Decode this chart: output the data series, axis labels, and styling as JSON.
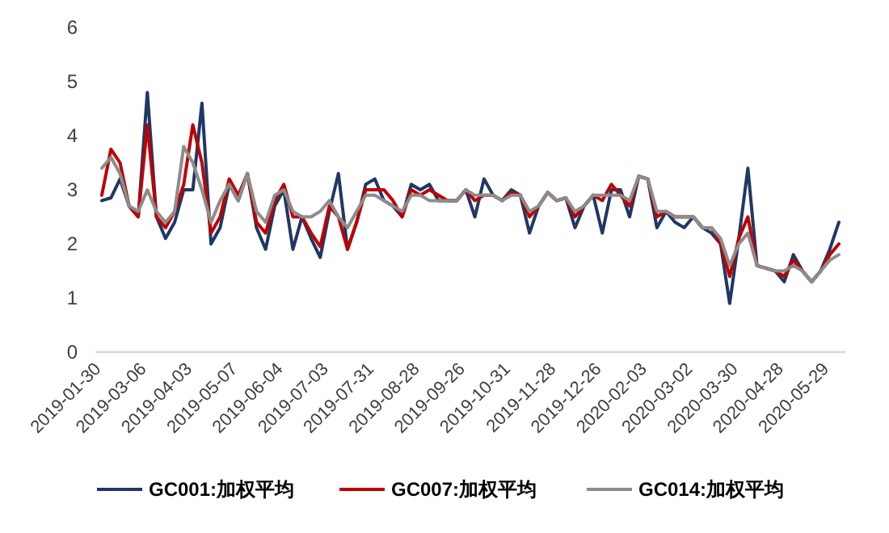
{
  "chart_data": {
    "type": "line",
    "categories": [
      "2019-01-30",
      null,
      null,
      null,
      null,
      "2019-03-06",
      null,
      null,
      null,
      null,
      "2019-04-03",
      null,
      null,
      null,
      null,
      "2019-05-07",
      null,
      null,
      null,
      null,
      "2019-06-04",
      null,
      null,
      null,
      null,
      "2019-07-03",
      null,
      null,
      null,
      null,
      "2019-07-31",
      null,
      null,
      null,
      null,
      "2019-08-28",
      null,
      null,
      null,
      null,
      "2019-09-26",
      null,
      null,
      null,
      null,
      "2019-10-31",
      null,
      null,
      null,
      null,
      "2019-11-28",
      null,
      null,
      null,
      null,
      "2019-12-26",
      null,
      null,
      null,
      null,
      "2020-02-03",
      null,
      null,
      null,
      null,
      "2020-03-02",
      null,
      null,
      null,
      null,
      "2020-03-30",
      null,
      null,
      null,
      null,
      "2020-04-28",
      null,
      null,
      null,
      null,
      "2020-05-29",
      null
    ],
    "series": [
      {
        "name": "GC001:加权平均",
        "color": "#1f3864",
        "values": [
          2.8,
          2.85,
          3.2,
          2.7,
          2.5,
          4.8,
          2.5,
          2.1,
          2.4,
          3.0,
          3.0,
          4.6,
          2.0,
          2.3,
          3.1,
          2.8,
          3.3,
          2.3,
          1.9,
          2.7,
          3.0,
          1.9,
          2.5,
          2.1,
          1.75,
          2.6,
          3.3,
          1.9,
          2.4,
          3.1,
          3.2,
          2.8,
          2.7,
          2.5,
          3.1,
          3.0,
          3.1,
          2.8,
          2.8,
          2.8,
          3.0,
          2.5,
          3.2,
          2.9,
          2.8,
          3.0,
          2.9,
          2.2,
          2.7,
          2.95,
          2.8,
          2.85,
          2.3,
          2.7,
          2.9,
          2.2,
          3.0,
          3.0,
          2.5,
          3.25,
          3.2,
          2.3,
          2.6,
          2.4,
          2.3,
          2.5,
          2.3,
          2.2,
          2.0,
          0.9,
          2.1,
          3.4,
          1.6,
          1.55,
          1.5,
          1.3,
          1.8,
          1.5,
          1.3,
          1.5,
          1.9,
          2.4
        ]
      },
      {
        "name": "GC007:加权平均",
        "color": "#c00000",
        "values": [
          2.9,
          3.75,
          3.5,
          2.7,
          2.5,
          4.2,
          2.5,
          2.3,
          2.6,
          3.1,
          4.2,
          3.5,
          2.2,
          2.5,
          3.2,
          2.9,
          3.3,
          2.4,
          2.2,
          2.8,
          3.1,
          2.5,
          2.5,
          2.2,
          1.95,
          2.7,
          2.5,
          1.9,
          2.4,
          3.0,
          3.0,
          3.0,
          2.8,
          2.5,
          3.0,
          2.9,
          3.0,
          2.9,
          2.8,
          2.8,
          3.0,
          2.8,
          2.9,
          2.9,
          2.8,
          2.95,
          2.9,
          2.5,
          2.7,
          2.95,
          2.8,
          2.85,
          2.5,
          2.7,
          2.9,
          2.8,
          3.1,
          2.9,
          2.7,
          3.25,
          3.2,
          2.5,
          2.6,
          2.5,
          2.5,
          2.5,
          2.3,
          2.3,
          2.0,
          1.4,
          2.1,
          2.5,
          1.6,
          1.55,
          1.5,
          1.4,
          1.7,
          1.5,
          1.3,
          1.5,
          1.8,
          2.0
        ]
      },
      {
        "name": "GC014:加权平均",
        "color": "#8c8c8c",
        "values": [
          3.4,
          3.6,
          3.3,
          2.7,
          2.6,
          3.0,
          2.6,
          2.4,
          2.6,
          3.8,
          3.5,
          3.0,
          2.4,
          2.8,
          3.1,
          2.8,
          3.3,
          2.6,
          2.4,
          2.9,
          3.0,
          2.6,
          2.5,
          2.5,
          2.6,
          2.8,
          2.5,
          2.3,
          2.6,
          2.9,
          2.9,
          2.8,
          2.7,
          2.6,
          2.9,
          2.9,
          2.8,
          2.8,
          2.8,
          2.8,
          3.0,
          2.9,
          2.9,
          2.9,
          2.8,
          2.9,
          2.9,
          2.6,
          2.7,
          2.95,
          2.8,
          2.85,
          2.6,
          2.7,
          2.9,
          2.9,
          2.9,
          2.9,
          2.8,
          3.25,
          3.2,
          2.6,
          2.6,
          2.5,
          2.5,
          2.5,
          2.3,
          2.3,
          2.1,
          1.6,
          2.0,
          2.2,
          1.6,
          1.55,
          1.5,
          1.5,
          1.6,
          1.5,
          1.3,
          1.5,
          1.7,
          1.8
        ]
      }
    ],
    "ylim": [
      0,
      6
    ],
    "yticks": [
      0,
      1,
      2,
      3,
      4,
      5,
      6
    ],
    "legend": "bottom",
    "grid": false
  }
}
